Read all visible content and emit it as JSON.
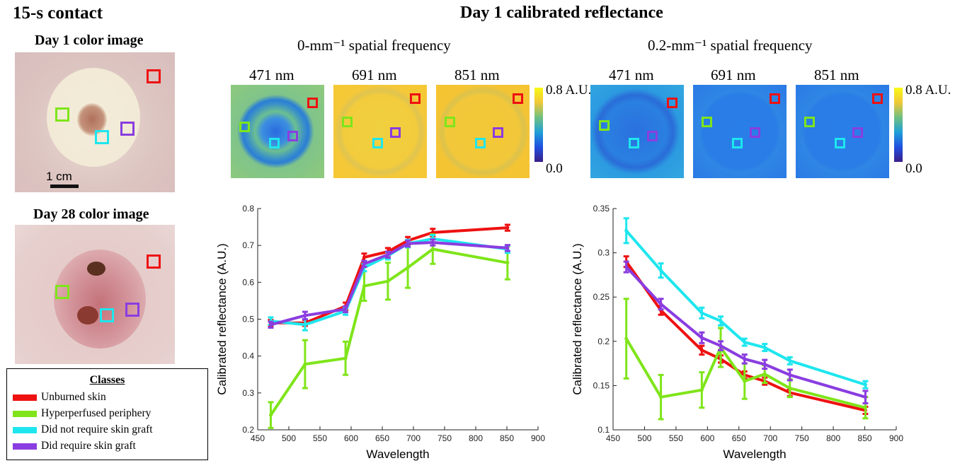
{
  "title_left": "15-s contact",
  "title_main": "Day 1 calibrated  reflectance",
  "day1_label": "Day 1 color image",
  "day28_label": "Day 28 color image",
  "scalebar_label": "1 cm",
  "freq0_label": "0-mm⁻¹ spatial frequency",
  "freq02_label": "0.2-mm⁻¹ spatial frequency",
  "wavelengths": [
    "471 nm",
    "691 nm",
    "851 nm"
  ],
  "colorbar": {
    "max": "0.8 A.U.",
    "min": "0.0"
  },
  "legend": {
    "title": "Classes",
    "items": [
      {
        "label": "Unburned skin",
        "color": "#ee1111"
      },
      {
        "label": "Hyperperfused periphery",
        "color": "#7fe51a"
      },
      {
        "label": "Did not require skin graft",
        "color": "#1ee6ee"
      },
      {
        "label": "Did require skin graft",
        "color": "#8a3de0"
      }
    ]
  },
  "chart_data": [
    {
      "type": "line",
      "xlabel": "Wavelength",
      "ylabel": "Calibrated reflectance (A.U.)",
      "xlim": [
        450,
        900
      ],
      "ylim": [
        0.2,
        0.8
      ],
      "xticks": [
        450,
        500,
        550,
        600,
        650,
        700,
        750,
        800,
        850,
        900
      ],
      "yticks": [
        0.2,
        0.3,
        0.4,
        0.5,
        0.6,
        0.7,
        0.8
      ],
      "x": [
        471,
        526,
        591,
        621,
        659,
        691,
        731,
        851
      ],
      "series": [
        {
          "name": "Unburned skin",
          "color": "#ee1111",
          "values": [
            0.49,
            0.49,
            0.535,
            0.668,
            0.683,
            0.713,
            0.735,
            0.748
          ],
          "errors": [
            0.008,
            0.008,
            0.01,
            0.01,
            0.01,
            0.01,
            0.01,
            0.008
          ]
        },
        {
          "name": "Hyperperfused periphery",
          "color": "#7fe51a",
          "values": [
            0.24,
            0.378,
            0.394,
            0.59,
            0.603,
            0.64,
            0.69,
            0.653
          ],
          "errors": [
            0.035,
            0.065,
            0.045,
            0.04,
            0.05,
            0.055,
            0.04,
            0.045
          ]
        },
        {
          "name": "Did not require skin graft",
          "color": "#1ee6ee",
          "values": [
            0.495,
            0.485,
            0.522,
            0.64,
            0.672,
            0.705,
            0.718,
            0.69
          ],
          "errors": [
            0.01,
            0.015,
            0.01,
            0.01,
            0.01,
            0.01,
            0.01,
            0.01
          ]
        },
        {
          "name": "Did require skin graft",
          "color": "#8a3de0",
          "values": [
            0.485,
            0.51,
            0.527,
            0.65,
            0.675,
            0.705,
            0.708,
            0.693
          ],
          "errors": [
            0.008,
            0.01,
            0.008,
            0.008,
            0.008,
            0.008,
            0.008,
            0.008
          ]
        }
      ]
    },
    {
      "type": "line",
      "xlabel": "Wavelength",
      "ylabel": "Calibrated reflectance (A.U.)",
      "xlim": [
        450,
        900
      ],
      "ylim": [
        0.1,
        0.35
      ],
      "xticks": [
        450,
        500,
        550,
        600,
        650,
        700,
        750,
        800,
        850,
        900
      ],
      "yticks": [
        0.1,
        0.15,
        0.2,
        0.25,
        0.3,
        0.35
      ],
      "x": [
        471,
        526,
        591,
        621,
        659,
        691,
        731,
        851
      ],
      "series": [
        {
          "name": "Unburned skin",
          "color": "#ee1111",
          "values": [
            0.29,
            0.235,
            0.19,
            0.18,
            0.162,
            0.155,
            0.142,
            0.122
          ],
          "errors": [
            0.006,
            0.005,
            0.005,
            0.004,
            0.004,
            0.004,
            0.004,
            0.004
          ]
        },
        {
          "name": "Hyperperfused periphery",
          "color": "#7fe51a",
          "values": [
            0.203,
            0.137,
            0.145,
            0.193,
            0.155,
            0.163,
            0.147,
            0.125
          ],
          "errors": [
            0.045,
            0.025,
            0.02,
            0.022,
            0.02,
            0.01,
            0.01,
            0.012
          ]
        },
        {
          "name": "Did not require skin graft",
          "color": "#1ee6ee",
          "values": [
            0.325,
            0.28,
            0.232,
            0.223,
            0.199,
            0.193,
            0.178,
            0.151
          ],
          "errors": [
            0.014,
            0.008,
            0.006,
            0.005,
            0.004,
            0.004,
            0.004,
            0.004
          ]
        },
        {
          "name": "Did require skin graft",
          "color": "#8a3de0",
          "values": [
            0.284,
            0.242,
            0.204,
            0.195,
            0.18,
            0.174,
            0.162,
            0.137
          ],
          "errors": [
            0.006,
            0.006,
            0.006,
            0.005,
            0.005,
            0.005,
            0.006,
            0.007
          ]
        }
      ]
    }
  ]
}
